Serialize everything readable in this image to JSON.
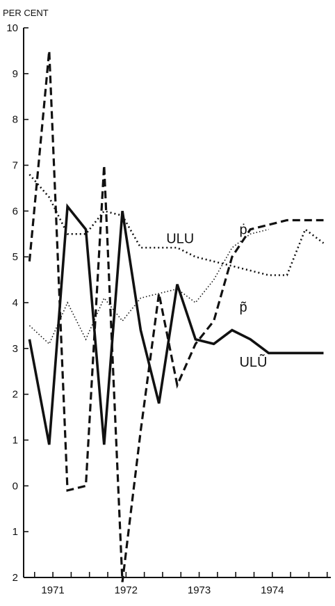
{
  "chart_data": {
    "type": "line",
    "title": "",
    "ylabel": "PER CENT",
    "xlabel": "",
    "ylim": [
      -2,
      10
    ],
    "xlim": [
      1970.6,
      1974.8
    ],
    "y_tick_labels": [
      {
        "v": 10,
        "t": "10"
      },
      {
        "v": 9,
        "t": "9"
      },
      {
        "v": 8,
        "t": "8"
      },
      {
        "v": 7,
        "t": "7"
      },
      {
        "v": 6,
        "t": "6"
      },
      {
        "v": 5,
        "t": "5"
      },
      {
        "v": 4,
        "t": "4"
      },
      {
        "v": 3,
        "t": "3"
      },
      {
        "v": 2,
        "t": "2"
      },
      {
        "v": 1,
        "t": "1"
      },
      {
        "v": 0,
        "t": "0"
      },
      {
        "v": -1,
        "t": "1"
      },
      {
        "v": -2,
        "t": "2"
      }
    ],
    "x_tick_labels": [
      {
        "v": 1971.0,
        "t": "1971"
      },
      {
        "v": 1972.0,
        "t": "1972"
      },
      {
        "v": 1973.0,
        "t": "1973"
      },
      {
        "v": 1974.0,
        "t": "1974"
      }
    ],
    "grid": false,
    "series": [
      {
        "name": "ULU",
        "style": "dotted-heavy",
        "x": [
          1970.68,
          1970.95,
          1971.2,
          1971.45,
          1971.7,
          1971.95,
          1972.2,
          1972.7,
          1972.95,
          1973.45,
          1973.95,
          1974.2,
          1974.45,
          1974.7
        ],
        "y": [
          6.8,
          6.3,
          5.5,
          5.5,
          6.0,
          5.9,
          5.2,
          5.2,
          5.0,
          4.8,
          4.6,
          4.6,
          5.6,
          5.3
        ]
      },
      {
        "name": "ṗ",
        "style": "dashed",
        "x": [
          1970.68,
          1970.95,
          1971.2,
          1971.45,
          1971.7,
          1971.95,
          1972.2,
          1972.45,
          1972.7,
          1972.95,
          1973.2,
          1973.45,
          1973.7,
          1973.95,
          1974.2,
          1974.45,
          1974.7
        ],
        "y": [
          4.9,
          9.5,
          -0.1,
          0.0,
          7.0,
          -2.1,
          1.2,
          4.2,
          2.2,
          3.1,
          3.6,
          5.0,
          5.6,
          5.7,
          5.8,
          5.8,
          5.8
        ]
      },
      {
        "name": "p̃",
        "style": "dotted-light",
        "x": [
          1970.68,
          1970.95,
          1971.2,
          1971.45,
          1971.7,
          1971.95,
          1972.2,
          1972.45,
          1972.7,
          1972.95,
          1973.2,
          1973.45,
          1973.7,
          1973.95
        ],
        "y": [
          3.5,
          3.1,
          4.0,
          3.2,
          4.1,
          3.6,
          4.1,
          4.2,
          4.3,
          4.0,
          4.5,
          5.2,
          5.5,
          5.6
        ]
      },
      {
        "name": "ULŨ",
        "style": "solid",
        "x": [
          1970.68,
          1970.95,
          1971.2,
          1971.45,
          1971.7,
          1971.95,
          1972.2,
          1972.45,
          1972.7,
          1972.95,
          1973.2,
          1973.45,
          1973.7,
          1973.95,
          1974.2,
          1974.45,
          1974.7
        ],
        "y": [
          3.2,
          0.9,
          6.1,
          5.6,
          0.9,
          6.0,
          3.4,
          1.8,
          4.4,
          3.2,
          3.1,
          3.4,
          3.2,
          2.9,
          2.9,
          2.9,
          2.9
        ]
      }
    ],
    "annotations": [
      {
        "text": "ULU",
        "x": 1972.55,
        "y": 5.3
      },
      {
        "text": "ṗ",
        "x": 1973.55,
        "y": 5.5
      },
      {
        "text": "p̃",
        "x": 1973.55,
        "y": 3.8
      },
      {
        "text": "ULŨ",
        "x": 1973.55,
        "y": 2.6
      }
    ]
  }
}
